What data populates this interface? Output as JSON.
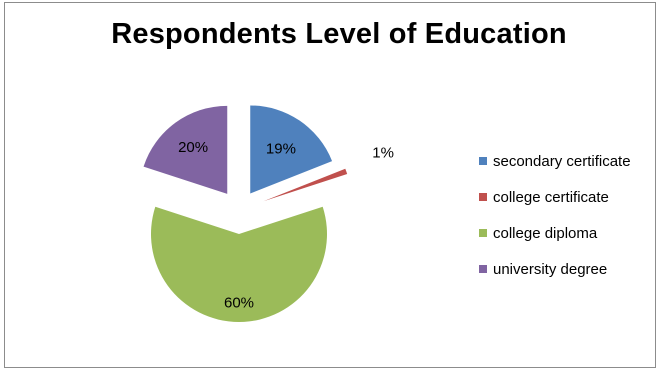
{
  "chart_data": {
    "type": "pie",
    "title": "Respondents Level of Education",
    "categories": [
      "secondary certificate",
      "college certificate",
      "college diploma",
      "university degree"
    ],
    "values": [
      19,
      1,
      60,
      20
    ],
    "data_labels": [
      "19%",
      "1%",
      "60%",
      "20%"
    ],
    "exploded": true,
    "legend": "right",
    "colors": [
      "#4f81bd",
      "#c0504d",
      "#9bbb59",
      "#8064a2"
    ]
  }
}
